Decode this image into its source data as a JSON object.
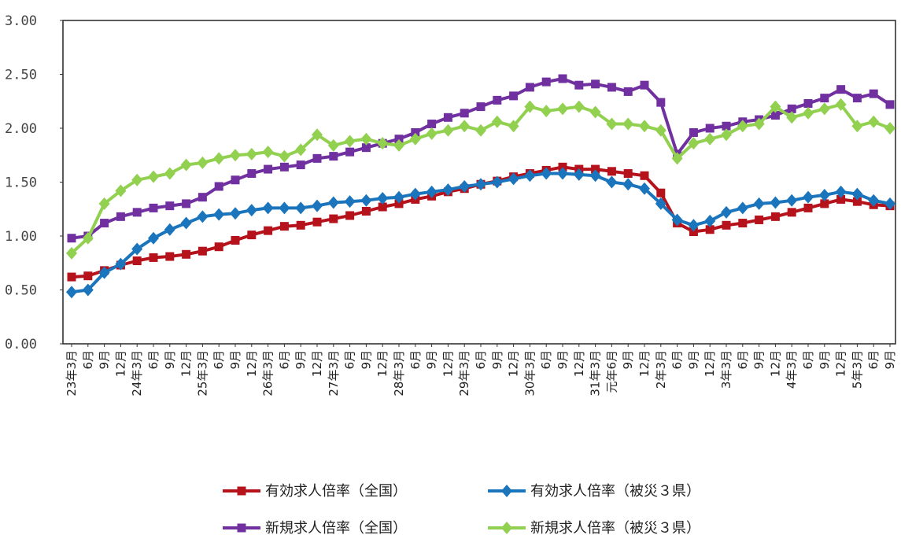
{
  "chart_data": {
    "type": "line",
    "ylim": [
      0,
      3
    ],
    "y_ticks": [
      "0.00",
      "0.50",
      "1.00",
      "1.50",
      "2.00",
      "2.50",
      "3.00"
    ],
    "grid": false,
    "legend_position": "bottom",
    "x": [
      "23年3月",
      "6月",
      "9月",
      "12月",
      "24年3月",
      "6月",
      "9月",
      "12月",
      "25年3月",
      "6月",
      "9月",
      "12月",
      "26年3月",
      "6月",
      "9月",
      "12月",
      "27年3月",
      "6月",
      "9月",
      "12月",
      "28年3月",
      "6月",
      "9月",
      "12月",
      "29年3月",
      "6月",
      "9月",
      "12月",
      "30年3月",
      "6月",
      "9月",
      "12月",
      "31年3月",
      "元年6月",
      "9月",
      "12月",
      "2年3月",
      "6月",
      "9月",
      "12月",
      "3年3月",
      "6月",
      "9月",
      "12月",
      "4年3月",
      "6月",
      "9月",
      "12月",
      "5年3月",
      "6月",
      "9月"
    ],
    "series": [
      {
        "name": "有効求人倍率（全国）",
        "color": "#b5121b",
        "marker": "square",
        "values": [
          0.62,
          0.63,
          0.68,
          0.73,
          0.77,
          0.8,
          0.81,
          0.83,
          0.86,
          0.9,
          0.96,
          1.01,
          1.05,
          1.09,
          1.1,
          1.13,
          1.16,
          1.19,
          1.23,
          1.27,
          1.3,
          1.34,
          1.37,
          1.41,
          1.44,
          1.48,
          1.51,
          1.55,
          1.58,
          1.61,
          1.64,
          1.62,
          1.62,
          1.6,
          1.58,
          1.56,
          1.4,
          1.12,
          1.04,
          1.06,
          1.1,
          1.12,
          1.15,
          1.18,
          1.22,
          1.26,
          1.3,
          1.34,
          1.32,
          1.29,
          1.28
        ]
      },
      {
        "name": "有効求人倍率（被災３県）",
        "color": "#1b75bc",
        "marker": "diamond",
        "values": [
          0.48,
          0.5,
          0.66,
          0.74,
          0.88,
          0.98,
          1.06,
          1.12,
          1.18,
          1.2,
          1.21,
          1.24,
          1.26,
          1.26,
          1.26,
          1.28,
          1.31,
          1.32,
          1.33,
          1.35,
          1.36,
          1.39,
          1.41,
          1.43,
          1.46,
          1.48,
          1.5,
          1.53,
          1.56,
          1.58,
          1.58,
          1.57,
          1.56,
          1.5,
          1.48,
          1.44,
          1.3,
          1.15,
          1.1,
          1.14,
          1.22,
          1.26,
          1.3,
          1.31,
          1.33,
          1.36,
          1.38,
          1.41,
          1.39,
          1.33,
          1.3
        ]
      },
      {
        "name": "新規求人倍率（全国）",
        "color": "#7030a0",
        "marker": "square",
        "values": [
          0.98,
          1.0,
          1.12,
          1.18,
          1.22,
          1.26,
          1.28,
          1.3,
          1.36,
          1.46,
          1.52,
          1.58,
          1.62,
          1.64,
          1.66,
          1.72,
          1.74,
          1.78,
          1.82,
          1.86,
          1.9,
          1.96,
          2.04,
          2.1,
          2.14,
          2.2,
          2.26,
          2.3,
          2.38,
          2.43,
          2.46,
          2.4,
          2.41,
          2.38,
          2.34,
          2.4,
          2.24,
          1.76,
          1.96,
          2.0,
          2.02,
          2.06,
          2.08,
          2.12,
          2.18,
          2.23,
          2.28,
          2.36,
          2.28,
          2.32,
          2.22
        ]
      },
      {
        "name": "新規求人倍率（被災３県）",
        "color": "#92d050",
        "marker": "diamond",
        "values": [
          0.84,
          0.98,
          1.3,
          1.42,
          1.52,
          1.55,
          1.58,
          1.66,
          1.68,
          1.72,
          1.75,
          1.76,
          1.78,
          1.74,
          1.8,
          1.94,
          1.84,
          1.88,
          1.9,
          1.86,
          1.84,
          1.9,
          1.95,
          1.98,
          2.02,
          1.98,
          2.06,
          2.02,
          2.2,
          2.16,
          2.18,
          2.2,
          2.15,
          2.04,
          2.04,
          2.02,
          1.98,
          1.72,
          1.86,
          1.9,
          1.94,
          2.02,
          2.04,
          2.2,
          2.1,
          2.14,
          2.18,
          2.22,
          2.02,
          2.06,
          2.0
        ]
      }
    ]
  }
}
